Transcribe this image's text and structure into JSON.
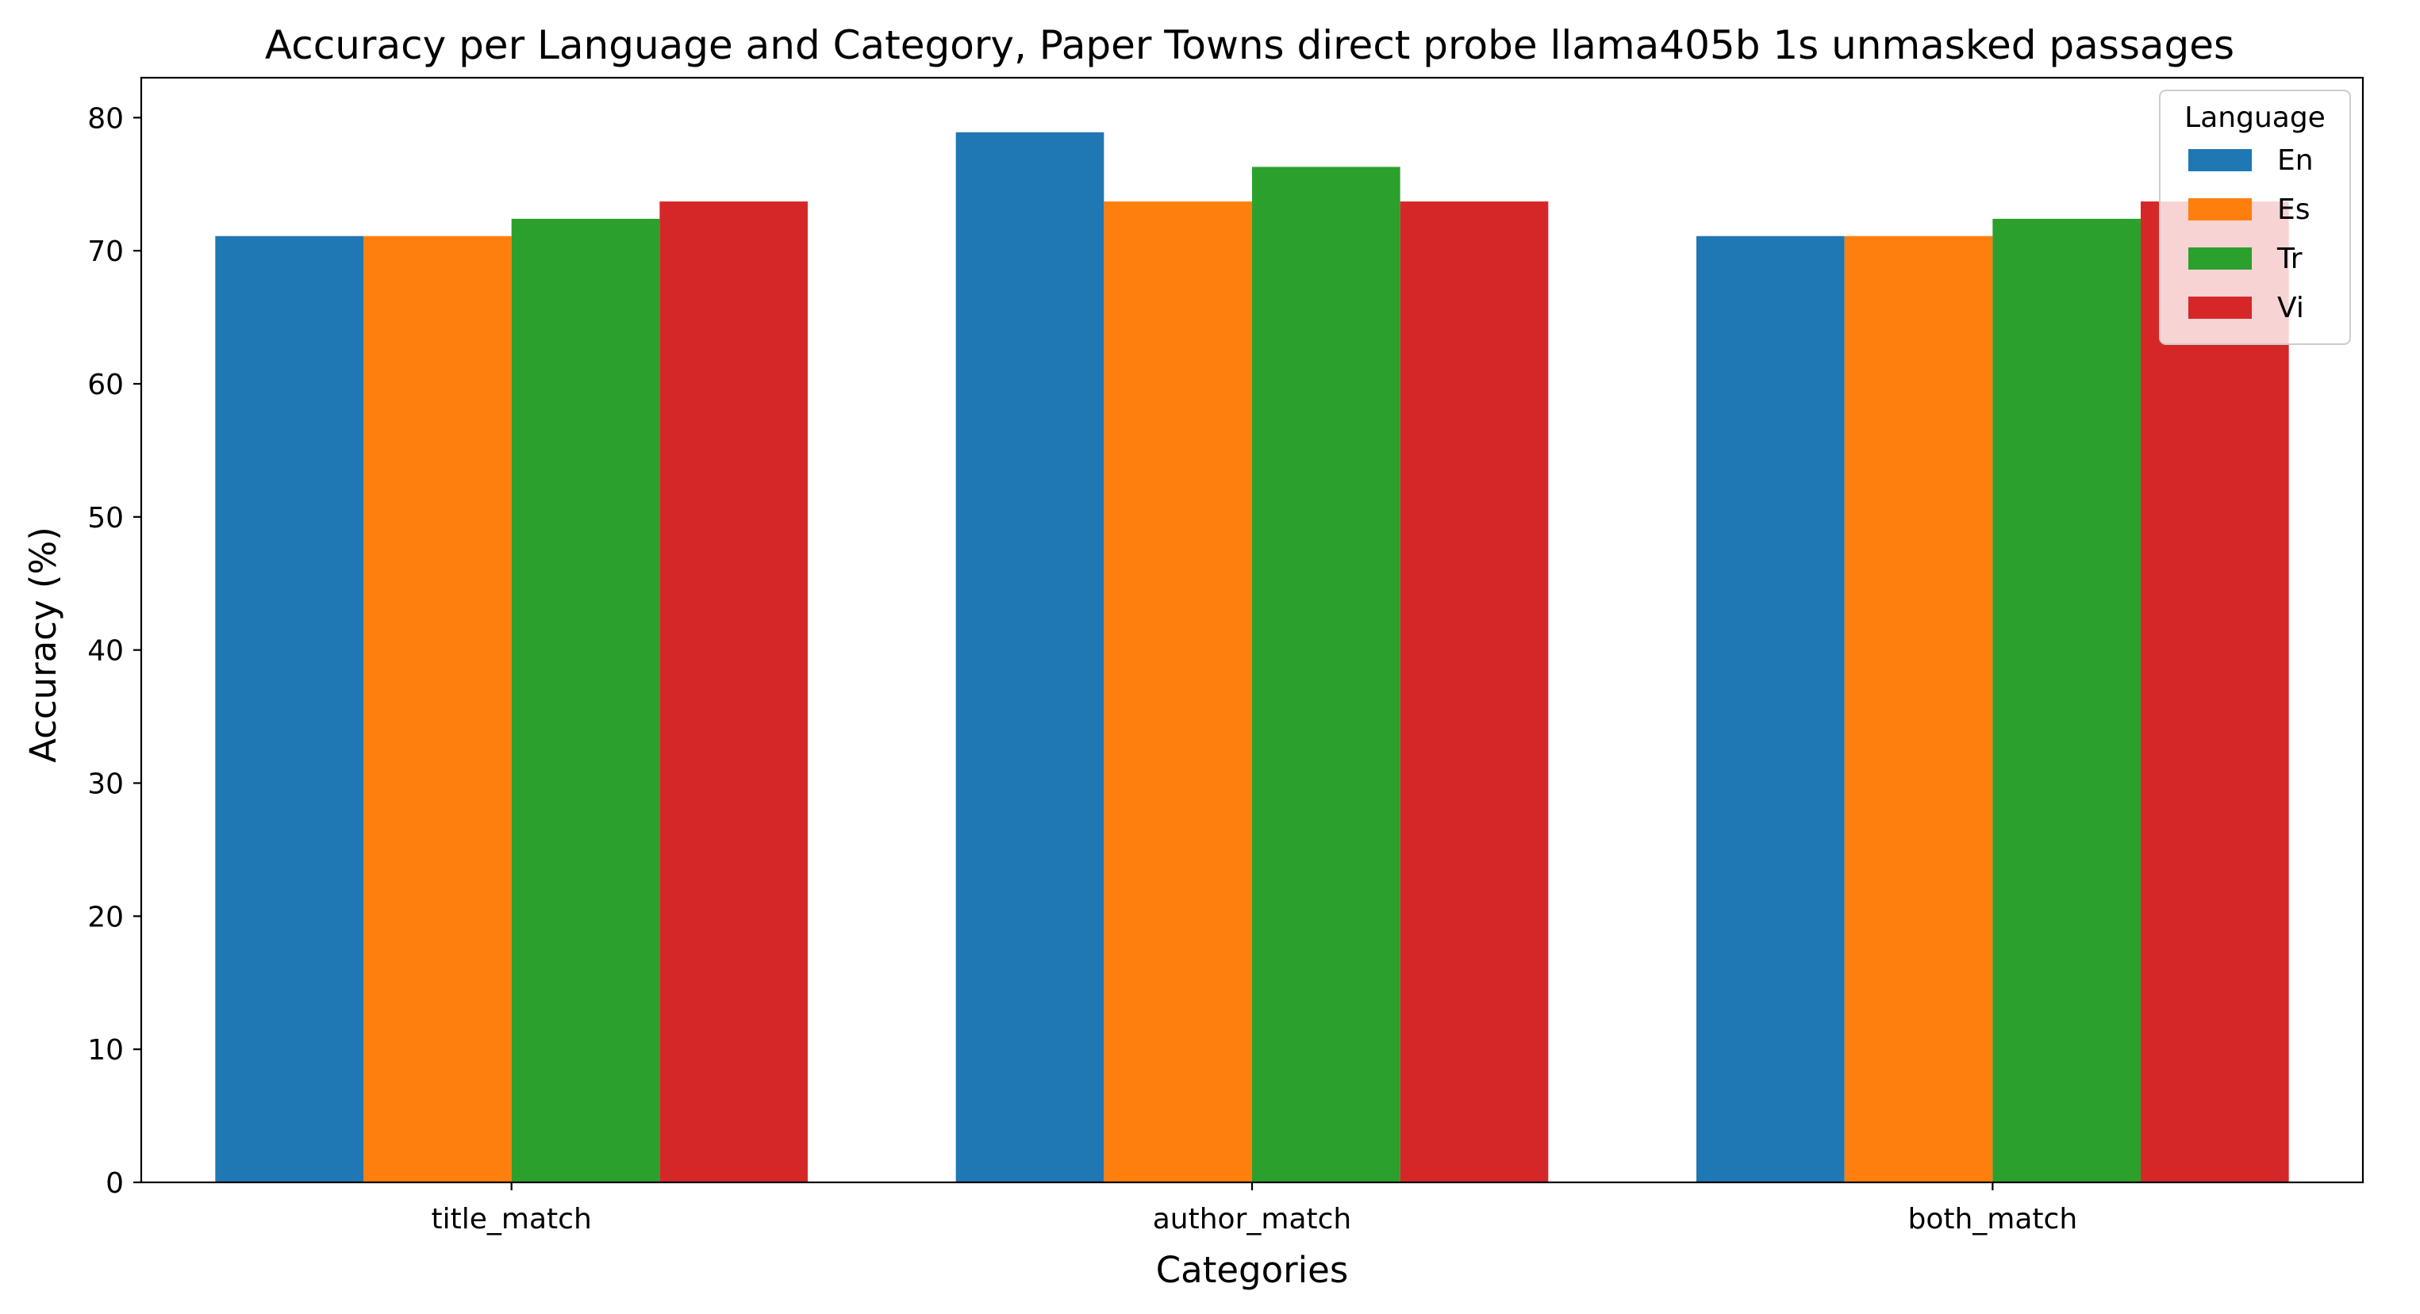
{
  "chart_data": {
    "type": "bar",
    "title": "Accuracy per Language and Category, Paper Towns direct probe llama405b 1s unmasked passages",
    "xlabel": "Categories",
    "ylabel": "Accuracy (%)",
    "categories": [
      "title_match",
      "author_match",
      "both_match"
    ],
    "ylim": [
      0,
      83
    ],
    "yticks": [
      0,
      10,
      20,
      30,
      40,
      50,
      60,
      70,
      80
    ],
    "legend": {
      "title": "Language",
      "placement": "upper-right"
    },
    "series": [
      {
        "name": "En",
        "color": "#1f77b4",
        "values": [
          71.1,
          78.9,
          71.1
        ]
      },
      {
        "name": "Es",
        "color": "#ff7f0e",
        "values": [
          71.1,
          73.7,
          71.1
        ]
      },
      {
        "name": "Tr",
        "color": "#2ca02c",
        "values": [
          72.4,
          76.3,
          72.4
        ]
      },
      {
        "name": "Vi",
        "color": "#d62728",
        "values": [
          73.7,
          73.7,
          73.7
        ]
      }
    ]
  }
}
